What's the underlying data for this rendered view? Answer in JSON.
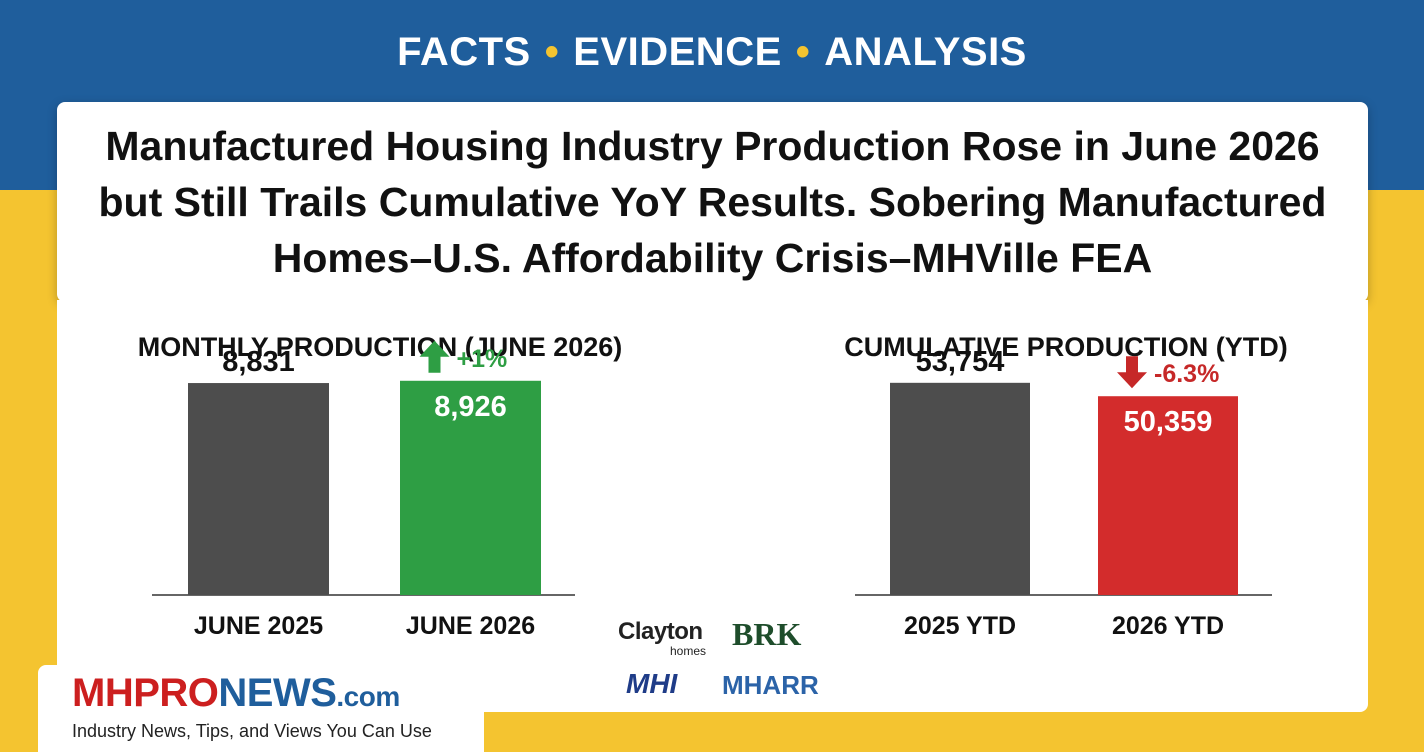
{
  "tagline": {
    "part1": "FACTS",
    "part2": "EVIDENCE",
    "part3": "ANALYSIS",
    "separator": "•"
  },
  "headline": "Manufactured Housing Industry Production Rose in June 2026 but Still Trails Cumulative YoY Results. Sobering Manufactured Homes–U.S. Affordability Crisis–MHVille FEA",
  "chart_data": [
    {
      "type": "bar",
      "title": "MONTHLY PRODUCTION (JUNE 2026)",
      "categories": [
        "JUNE 2025",
        "JUNE 2026"
      ],
      "values": [
        8831,
        8926
      ],
      "value_labels": [
        "8,831",
        "8,926"
      ],
      "colors": [
        "#4d4d4d",
        "#2e9e44"
      ],
      "change": {
        "label": "+1%",
        "direction": "up",
        "color": "#2e9e44"
      },
      "ylim": [
        0,
        12500
      ],
      "grid": false
    },
    {
      "type": "bar",
      "title": "CUMULATIVE PRODUCTION (YTD)",
      "categories": [
        "2025 YTD",
        "2026 YTD"
      ],
      "values": [
        53754,
        50359
      ],
      "value_labels": [
        "53,754",
        "50,359"
      ],
      "colors": [
        "#4d4d4d",
        "#d32c2c"
      ],
      "change": {
        "label": "-6.3%",
        "direction": "down",
        "color": "#c62828"
      },
      "ylim": [
        0,
        76000
      ],
      "grid": false
    }
  ],
  "logos": {
    "clayton": "Clayton",
    "clayton_sub": "homes",
    "brk": "BRK",
    "mhi": "MHI",
    "mharr": "MHARR"
  },
  "brand": {
    "mh": "MH",
    "pro": "PRO",
    "news": "NEWS",
    "com": ".com",
    "tagline": "Industry News, Tips, and Views You Can Use"
  }
}
